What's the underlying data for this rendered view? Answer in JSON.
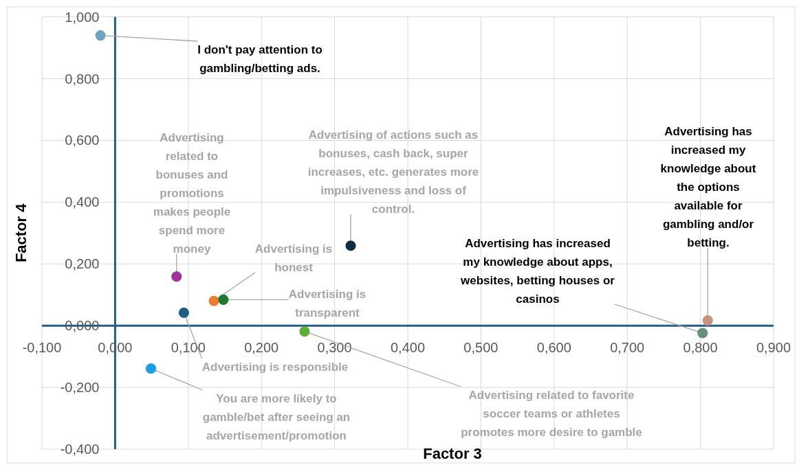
{
  "chart_data": {
    "type": "scatter",
    "xlabel": "Factor 3",
    "ylabel": "Factor 4",
    "xlim": [
      -0.1,
      0.9
    ],
    "xticks": [
      {
        "value": -0.1,
        "label": "-0,100"
      },
      {
        "value": 0,
        "label": "0,000"
      },
      {
        "value": 0.1,
        "label": "0,100"
      },
      {
        "value": 0.2,
        "label": "0,200"
      },
      {
        "value": 0.3,
        "label": "0,300"
      },
      {
        "value": 0.4,
        "label": "0,400"
      },
      {
        "value": 0.5,
        "label": "0,500"
      },
      {
        "value": 0.6,
        "label": "0,600"
      },
      {
        "value": 0.7,
        "label": "0,700"
      },
      {
        "value": 0.8,
        "label": "0,800"
      },
      {
        "value": 0.9,
        "label": "0,900"
      }
    ],
    "ylim": [
      -0.4,
      1.0
    ],
    "yticks": [
      {
        "value": -0.4,
        "label": "-0,400"
      },
      {
        "value": -0.2,
        "label": "-0,200"
      },
      {
        "value": 0,
        "label": "0,000"
      },
      {
        "value": 0.2,
        "label": "0,200"
      },
      {
        "value": 0.4,
        "label": "0,400"
      },
      {
        "value": 0.6,
        "label": "0,600"
      },
      {
        "value": 0.8,
        "label": "0,800"
      },
      {
        "value": 1.0,
        "label": "1,000"
      }
    ],
    "grid": true,
    "marker": "circle",
    "series": [
      {
        "x": [
          -0.02,
          0.084,
          0.135,
          0.148,
          0.094,
          0.259,
          0.049,
          0.322,
          0.81,
          0.803
        ],
        "values": [
          0.94,
          0.159,
          0.08,
          0.084,
          0.042,
          -0.019,
          -0.139,
          0.259,
          0.017,
          -0.024
        ],
        "colors": [
          "#6fa3bf",
          "#a0339e",
          "#ed7d31",
          "#1e7a2e",
          "#1f5f85",
          "#5ab033",
          "#1ba1e2",
          "#0e2f44",
          "#c8937a",
          "#6b8e7a"
        ]
      }
    ],
    "annotations": [
      {
        "text": "I don't pay attention to gambling/betting ads.",
        "x": -0.02,
        "y": 0.94
      },
      {
        "text": "Advertising related to bonuses and promotions makes people spend more money",
        "x": 0.084,
        "y": 0.159
      },
      {
        "text": "Advertising is honest",
        "x": 0.135,
        "y": 0.08
      },
      {
        "text": "Advertising is transparent",
        "x": 0.148,
        "y": 0.084
      },
      {
        "text": "Advertising is responsible",
        "x": 0.094,
        "y": 0.042
      },
      {
        "text": "Advertising related to favorite soccer teams or athletes promotes more desire to gamble",
        "x": 0.259,
        "y": -0.019
      },
      {
        "text": "You are more likely to gamble/bet after seeing an advertisement/promotion",
        "x": 0.049,
        "y": -0.139
      },
      {
        "text": "Advertising of actions such as bonuses, cash back, super increases, etc. generates more impulsiveness and loss of control.",
        "x": 0.322,
        "y": 0.259
      },
      {
        "text": "Advertising has increased my knowledge about the options available for gambling and/or betting.",
        "x": 0.81,
        "y": 0.017
      },
      {
        "text": "Advertising has increased my knowledge about apps, websites, betting houses or casinos",
        "x": 0.803,
        "y": -0.024
      }
    ]
  }
}
